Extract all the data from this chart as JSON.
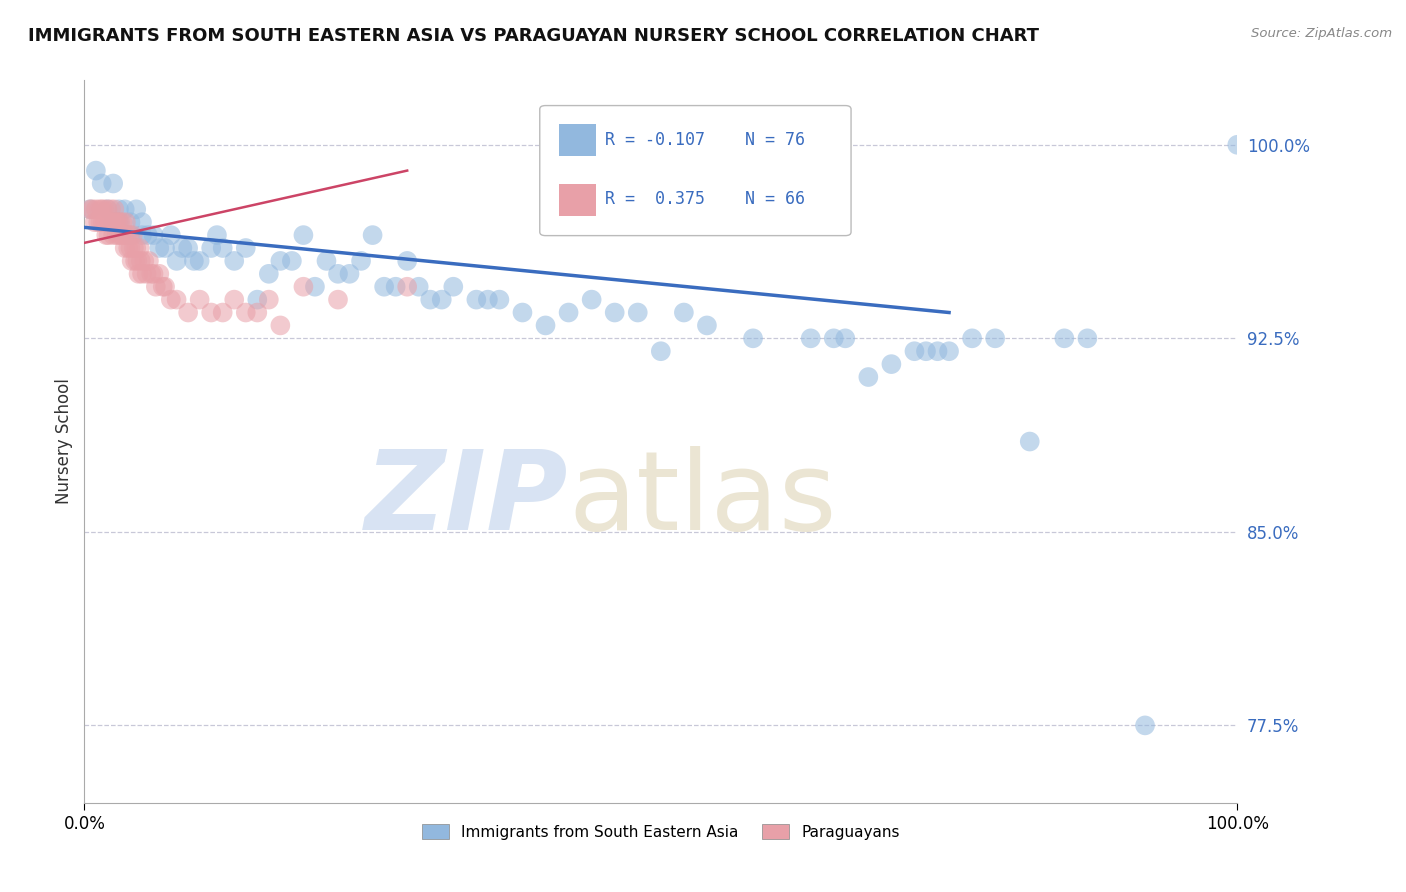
{
  "title": "IMMIGRANTS FROM SOUTH EASTERN ASIA VS PARAGUAYAN NURSERY SCHOOL CORRELATION CHART",
  "source": "Source: ZipAtlas.com",
  "ylabel": "Nursery School",
  "xlim": [
    0.0,
    1.0
  ],
  "ylim": [
    0.745,
    1.025
  ],
  "yticks": [
    0.775,
    0.85,
    0.925,
    1.0
  ],
  "ytick_labels": [
    "77.5%",
    "85.0%",
    "92.5%",
    "100.0%"
  ],
  "xtick_positions": [
    0.0,
    1.0
  ],
  "xtick_labels": [
    "0.0%",
    "100.0%"
  ],
  "legend_r1": "R = -0.107",
  "legend_n1": "N = 76",
  "legend_r2": "R =  0.375",
  "legend_n2": "N = 66",
  "blue_color": "#92b8de",
  "pink_color": "#e8a0a8",
  "trendline_blue": "#3a6cbf",
  "trendline_pink": "#cc4466",
  "blue_scatter_x": [
    0.005,
    0.01,
    0.015,
    0.02,
    0.025,
    0.025,
    0.03,
    0.03,
    0.035,
    0.04,
    0.04,
    0.045,
    0.05,
    0.05,
    0.055,
    0.06,
    0.065,
    0.07,
    0.075,
    0.08,
    0.085,
    0.09,
    0.095,
    0.1,
    0.11,
    0.115,
    0.12,
    0.13,
    0.14,
    0.15,
    0.16,
    0.17,
    0.18,
    0.19,
    0.2,
    0.21,
    0.22,
    0.23,
    0.24,
    0.25,
    0.26,
    0.27,
    0.28,
    0.29,
    0.3,
    0.31,
    0.32,
    0.34,
    0.35,
    0.36,
    0.38,
    0.4,
    0.42,
    0.44,
    0.46,
    0.48,
    0.5,
    0.52,
    0.54,
    0.58,
    0.63,
    0.65,
    0.66,
    0.68,
    0.7,
    0.72,
    0.73,
    0.74,
    0.75,
    0.77,
    0.79,
    0.82,
    0.85,
    0.87,
    0.92,
    1.0
  ],
  "blue_scatter_y": [
    0.975,
    0.99,
    0.985,
    0.975,
    0.985,
    0.97,
    0.975,
    0.97,
    0.975,
    0.97,
    0.965,
    0.975,
    0.97,
    0.965,
    0.965,
    0.965,
    0.96,
    0.96,
    0.965,
    0.955,
    0.96,
    0.96,
    0.955,
    0.955,
    0.96,
    0.965,
    0.96,
    0.955,
    0.96,
    0.94,
    0.95,
    0.955,
    0.955,
    0.965,
    0.945,
    0.955,
    0.95,
    0.95,
    0.955,
    0.965,
    0.945,
    0.945,
    0.955,
    0.945,
    0.94,
    0.94,
    0.945,
    0.94,
    0.94,
    0.94,
    0.935,
    0.93,
    0.935,
    0.94,
    0.935,
    0.935,
    0.92,
    0.935,
    0.93,
    0.925,
    0.925,
    0.925,
    0.925,
    0.91,
    0.915,
    0.92,
    0.92,
    0.92,
    0.92,
    0.925,
    0.925,
    0.885,
    0.925,
    0.925,
    0.775,
    1.0
  ],
  "pink_scatter_x": [
    0.005,
    0.007,
    0.009,
    0.01,
    0.012,
    0.013,
    0.014,
    0.015,
    0.016,
    0.017,
    0.018,
    0.019,
    0.02,
    0.021,
    0.022,
    0.023,
    0.024,
    0.025,
    0.026,
    0.027,
    0.028,
    0.029,
    0.03,
    0.031,
    0.032,
    0.033,
    0.034,
    0.035,
    0.036,
    0.037,
    0.038,
    0.039,
    0.04,
    0.041,
    0.042,
    0.043,
    0.044,
    0.045,
    0.046,
    0.047,
    0.048,
    0.049,
    0.05,
    0.052,
    0.054,
    0.056,
    0.058,
    0.06,
    0.062,
    0.065,
    0.068,
    0.07,
    0.075,
    0.08,
    0.09,
    0.1,
    0.11,
    0.12,
    0.13,
    0.14,
    0.15,
    0.16,
    0.17,
    0.19,
    0.22,
    0.28
  ],
  "pink_scatter_y": [
    0.975,
    0.975,
    0.97,
    0.975,
    0.97,
    0.975,
    0.97,
    0.975,
    0.97,
    0.975,
    0.97,
    0.965,
    0.975,
    0.965,
    0.97,
    0.975,
    0.97,
    0.965,
    0.975,
    0.97,
    0.965,
    0.97,
    0.965,
    0.97,
    0.965,
    0.97,
    0.965,
    0.96,
    0.97,
    0.965,
    0.96,
    0.965,
    0.96,
    0.955,
    0.965,
    0.96,
    0.955,
    0.96,
    0.955,
    0.95,
    0.96,
    0.955,
    0.95,
    0.955,
    0.95,
    0.955,
    0.95,
    0.95,
    0.945,
    0.95,
    0.945,
    0.945,
    0.94,
    0.94,
    0.935,
    0.94,
    0.935,
    0.935,
    0.94,
    0.935,
    0.935,
    0.94,
    0.93,
    0.945,
    0.94,
    0.945
  ],
  "blue_trend_x": [
    0.0,
    0.75
  ],
  "blue_trend_y": [
    0.968,
    0.935
  ],
  "pink_trend_x": [
    0.0,
    0.28
  ],
  "pink_trend_y": [
    0.962,
    0.99
  ]
}
